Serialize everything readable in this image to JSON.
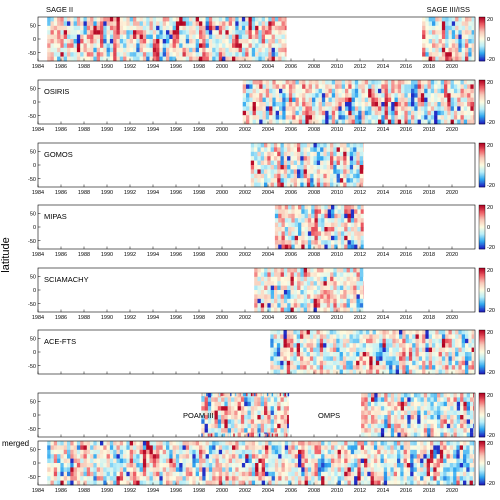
{
  "chart_data": {
    "type": "heatmap",
    "ylabel": "latitude",
    "x_range": [
      1984,
      2022
    ],
    "y_range": [
      -80,
      80
    ],
    "x_ticks": [
      "1984",
      "1986",
      "1988",
      "1990",
      "1992",
      "1994",
      "1996",
      "1998",
      "2000",
      "2002",
      "2004",
      "2006",
      "2008",
      "2010",
      "2012",
      "2014",
      "2016",
      "2018",
      "2020"
    ],
    "y_ticks": [
      "50",
      "0",
      "-50"
    ],
    "colorbar": {
      "min": -20,
      "max": 20,
      "ticks": [
        "20",
        "0",
        "-20"
      ],
      "colors": [
        "#2020c0",
        "#30a8f0",
        "#b8eef8",
        "#fffce0",
        "#f8c8b8",
        "#f06068",
        "#b00020"
      ]
    },
    "panels": [
      {
        "labels": [
          {
            "text": "SAGE II",
            "at": "top-left"
          },
          {
            "text": "SAGE III/ISS",
            "at": "top-right"
          }
        ],
        "coverage": [
          [
            1984.8,
            2005.6
          ],
          [
            2017.4,
            2021.9
          ]
        ],
        "show_xticks": true
      },
      {
        "labels": [
          {
            "text": "OSIRIS",
            "at": "upper-left"
          }
        ],
        "coverage": [
          [
            2001.8,
            2021.9
          ]
        ],
        "show_xticks": true
      },
      {
        "labels": [
          {
            "text": "GOMOS",
            "at": "upper-left"
          }
        ],
        "coverage": [
          [
            2002.5,
            2012.3
          ]
        ],
        "show_xticks": true
      },
      {
        "labels": [
          {
            "text": "MIPAS",
            "at": "upper-left"
          }
        ],
        "coverage": [
          [
            2004.6,
            2012.3
          ]
        ],
        "show_xticks": true
      },
      {
        "labels": [
          {
            "text": "SCIAMACHY",
            "at": "upper-left"
          }
        ],
        "coverage": [
          [
            2002.8,
            2012.3
          ]
        ],
        "show_xticks": true
      },
      {
        "labels": [
          {
            "text": "ACE-FTS",
            "at": "upper-left"
          }
        ],
        "coverage": [
          [
            2004.2,
            2021.9
          ]
        ],
        "show_xticks": false
      },
      {
        "labels": [
          {
            "text": "POAM III",
            "at": "middle-left"
          },
          {
            "text": "OMPS",
            "at": "middle-center"
          }
        ],
        "coverage": [
          [
            1998.2,
            2005.8
          ],
          [
            2012.1,
            2021.9
          ]
        ],
        "poam_edges": [
          1998.2,
          2005.8
        ],
        "show_xticks": false
      },
      {
        "labels": [
          {
            "text": "merged",
            "at": "outside-left"
          }
        ],
        "coverage": [
          [
            1984.8,
            2021.9
          ]
        ],
        "show_xticks": true
      }
    ]
  }
}
